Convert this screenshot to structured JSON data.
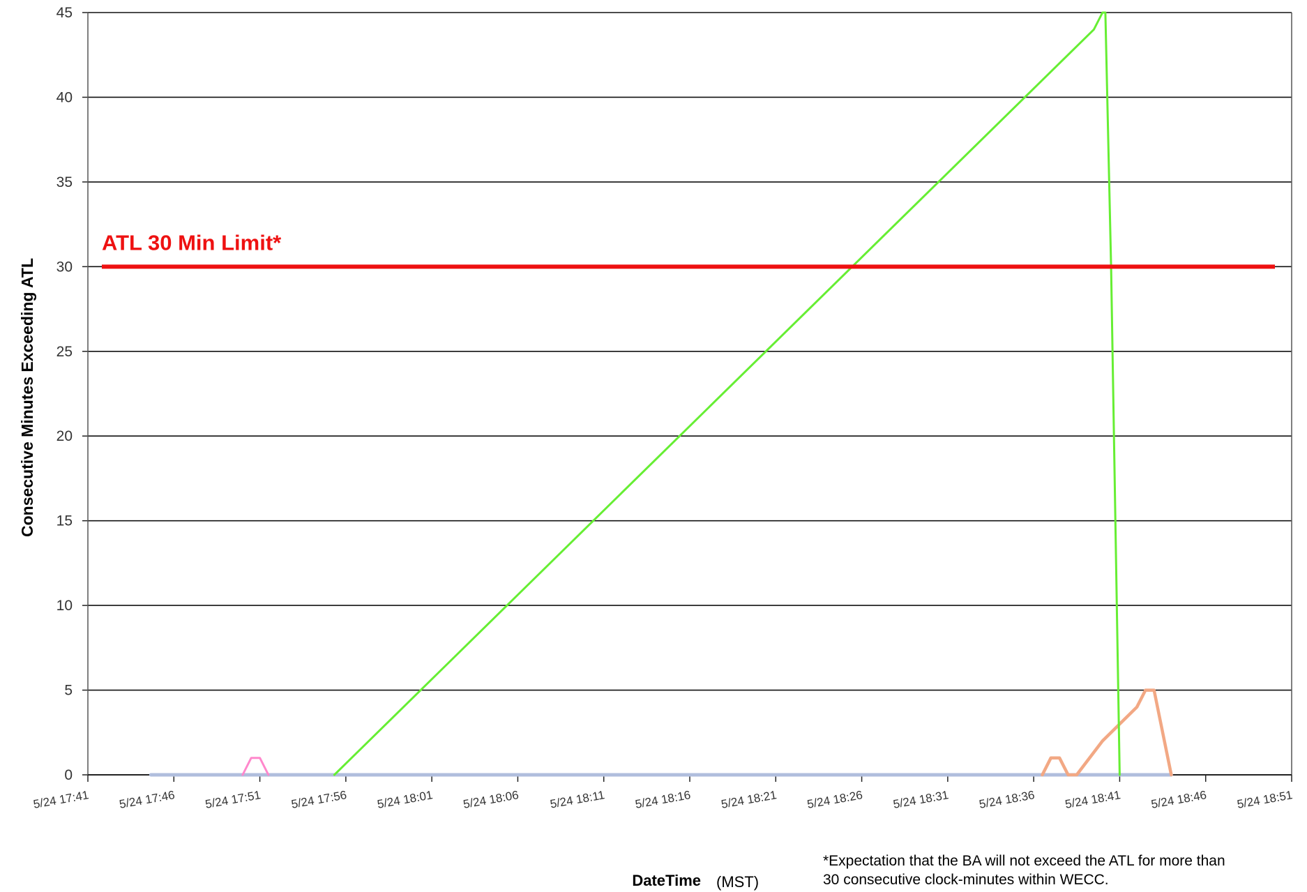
{
  "chart_data": {
    "type": "line",
    "title": "",
    "xlabel": "DateTime",
    "xlabel_unit": "(MST)",
    "ylabel": "Consecutive  Minutes  Exceeding  ATL",
    "ylim": [
      0,
      45
    ],
    "yticks": [
      "0",
      "5",
      "10",
      "15",
      "20",
      "25",
      "30",
      "35",
      "40",
      "45"
    ],
    "xticks": [
      "5/24 17:41",
      "5/24 17:46",
      "5/24 17:51",
      "5/24 17:56",
      "5/24 18:01",
      "5/24 18:06",
      "5/24 18:11",
      "5/24 18:16",
      "5/24 18:21",
      "5/24 18:26",
      "5/24 18:31",
      "5/24 18:36",
      "5/24 18:41",
      "5/24 18:46",
      "5/24 18:51"
    ],
    "grid": "horizontal",
    "legend": "none",
    "limit_line": {
      "value": 30,
      "label": "ATL 30 Min Limit*",
      "color": "#ee1111"
    },
    "footnote": [
      "*Expectation that the BA will not exceed the ATL for more than",
      "30 consecutive clock-minutes within WECC."
    ],
    "series": [
      {
        "color": "#66ee33",
        "points": [
          [
            "5/24 17:55:20",
            0
          ],
          [
            "5/24 18:39:30",
            44
          ],
          [
            "5/24 18:40",
            45
          ],
          [
            "5/24 18:40:10",
            45
          ],
          [
            "5/24 18:40:30",
            30
          ],
          [
            "5/24 18:41",
            0
          ]
        ]
      },
      {
        "color": "#f2a884",
        "points": [
          [
            "5/24 18:36:30",
            0
          ],
          [
            "5/24 18:37",
            1
          ],
          [
            "5/24 18:37:30",
            1
          ],
          [
            "5/24 18:38",
            0
          ],
          [
            "5/24 18:38:30",
            0
          ],
          [
            "5/24 18:40",
            2
          ],
          [
            "5/24 18:42",
            4
          ],
          [
            "5/24 18:42:30",
            5
          ],
          [
            "5/24 18:43",
            5
          ],
          [
            "5/24 18:44",
            0
          ]
        ]
      },
      {
        "color": "#ff88cc",
        "points": [
          [
            "5/24 17:50",
            0
          ],
          [
            "5/24 17:50:30",
            1
          ],
          [
            "5/24 17:51",
            1
          ],
          [
            "5/24 17:51:30",
            0
          ]
        ]
      },
      {
        "color": "#b0bedd",
        "points": [
          [
            "5/24 17:44:40",
            0
          ],
          [
            "5/24 18:44",
            0
          ]
        ]
      }
    ]
  }
}
